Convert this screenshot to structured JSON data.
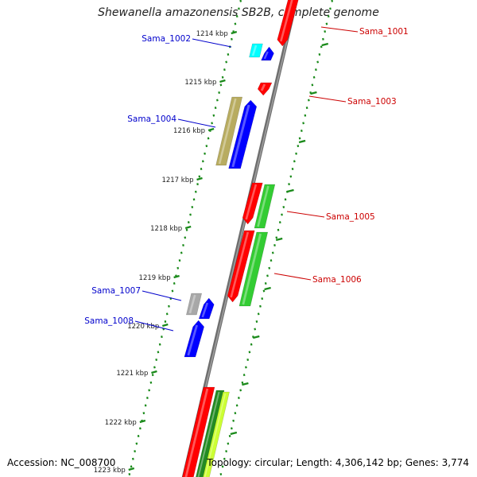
{
  "title": "Shewanella amazonensis SB2B, complete genome",
  "footer": {
    "accession": "Accession: NC_008700",
    "info": "Topology: circular; Length: 4,306,142 bp; Genes: 3,774"
  },
  "kbp_labels": [
    "1214 kbp",
    "1215 kbp",
    "1216 kbp",
    "1217 kbp",
    "1218 kbp",
    "1219 kbp",
    "1220 kbp",
    "1221 kbp",
    "1222 kbp",
    "1223 kbp"
  ],
  "genes": [
    {
      "name": "Sama_1001",
      "strand": "plus",
      "label_side": "right"
    },
    {
      "name": "Sama_1002",
      "strand": "minus",
      "label_side": "left"
    },
    {
      "name": "Sama_1003",
      "strand": "plus",
      "label_side": "right"
    },
    {
      "name": "Sama_1004",
      "strand": "minus",
      "label_side": "left"
    },
    {
      "name": "Sama_1005",
      "strand": "plus",
      "label_side": "right"
    },
    {
      "name": "Sama_1006",
      "strand": "plus",
      "label_side": "right"
    },
    {
      "name": "Sama_1007",
      "strand": "minus",
      "label_side": "left"
    },
    {
      "name": "Sama_1008",
      "strand": "minus",
      "label_side": "left"
    }
  ],
  "colors": {
    "backbone": "#808080",
    "ticks": "#1a8a1a",
    "left_label": "#0000cc",
    "right_label": "#cc0000",
    "red": "#ff0000",
    "blue": "#0000ff",
    "green": "#33cc33",
    "cyan": "#00ffff",
    "olive": "#b8ac60",
    "gray": "#a8a8a8",
    "lime": "#ccff33"
  }
}
